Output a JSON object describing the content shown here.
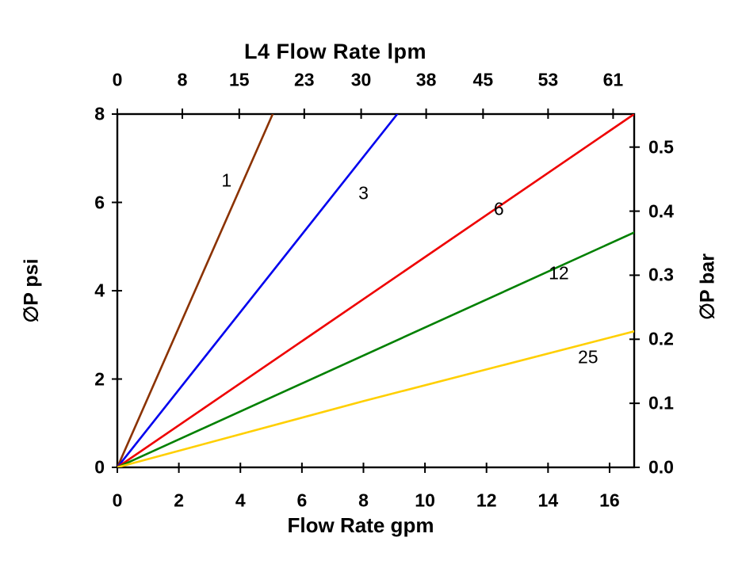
{
  "chart_data": {
    "type": "line",
    "top_axis_title": "L4  Flow Rate lpm",
    "xlabel": "Flow Rate gpm",
    "ylabel_left": "∅P psi",
    "ylabel_right": "∅P bar",
    "xlim": [
      0,
      16.8
    ],
    "ylim": [
      0,
      8
    ],
    "grid": false,
    "legend": "inline-labels",
    "x_ticks_gpm": [
      0,
      2,
      4,
      6,
      8,
      10,
      12,
      14,
      16
    ],
    "x_ticks_lpm": [
      0,
      8,
      15,
      23,
      30,
      38,
      45,
      53,
      61
    ],
    "lpm_per_gpm": 3.78541,
    "y_ticks_psi": [
      0,
      2,
      4,
      6,
      8
    ],
    "y_ticks_bar": [
      "0.0",
      "0.1",
      "0.2",
      "0.3",
      "0.4",
      "0.5"
    ],
    "psi_per_bar": 14.5038,
    "frame_color": "#000000",
    "series": [
      {
        "name": "1",
        "label": "1",
        "color": "#8B3200",
        "points_gpm_psi": [
          [
            0,
            0
          ],
          [
            5.05,
            8
          ]
        ],
        "label_at_gpm_psi": [
          3.55,
          6.5
        ]
      },
      {
        "name": "3",
        "label": "3",
        "color": "#0000EE",
        "points_gpm_psi": [
          [
            0,
            0
          ],
          [
            9.1,
            8
          ]
        ],
        "label_at_gpm_psi": [
          8.0,
          6.2
        ]
      },
      {
        "name": "6",
        "label": "6",
        "color": "#EE0000",
        "points_gpm_psi": [
          [
            0,
            0
          ],
          [
            16.8,
            8
          ]
        ],
        "label_at_gpm_psi": [
          12.4,
          5.85
        ]
      },
      {
        "name": "12",
        "label": "12",
        "color": "#008000",
        "points_gpm_psi": [
          [
            0,
            0
          ],
          [
            16.8,
            5.32
          ]
        ],
        "label_at_gpm_psi": [
          14.35,
          4.4
        ]
      },
      {
        "name": "25",
        "label": "25",
        "color": "#FFCF00",
        "points_gpm_psi": [
          [
            0,
            0
          ],
          [
            8,
            1.5
          ],
          [
            16.8,
            3.08
          ]
        ],
        "label_at_gpm_psi": [
          15.3,
          2.5
        ]
      }
    ]
  }
}
